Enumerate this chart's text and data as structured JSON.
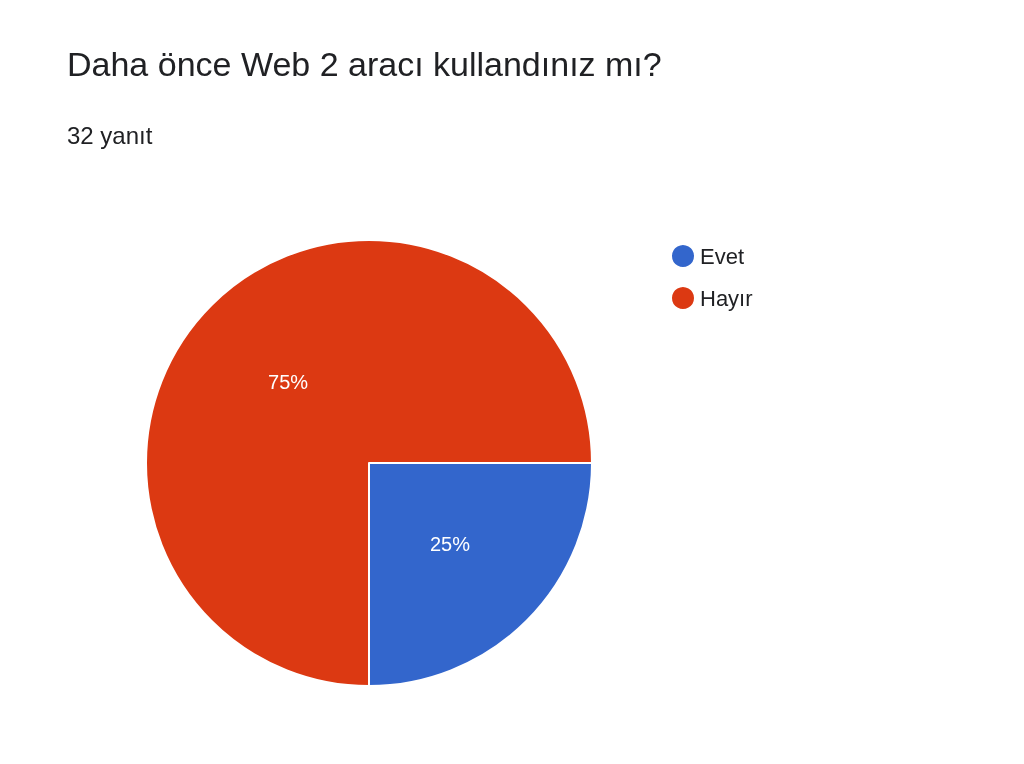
{
  "chart_data": {
    "type": "pie",
    "title": "Daha önce Web 2 aracı kullandınız mı?",
    "subtitle": "32 yanıt",
    "categories": [
      "Evet",
      "Hayır"
    ],
    "values": [
      25,
      75
    ],
    "value_labels": [
      "25%",
      "75%"
    ],
    "colors": [
      "#3366cc",
      "#dc3912"
    ],
    "legend": "top right"
  }
}
